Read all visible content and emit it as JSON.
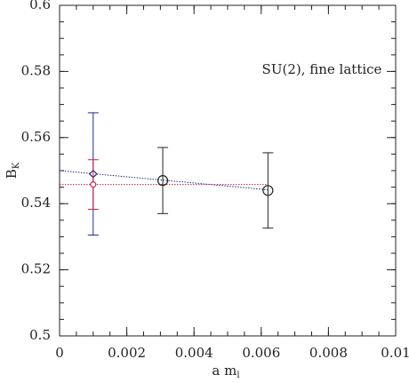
{
  "chart_data": {
    "type": "scatter",
    "annotation": "SU(2), fine lattice",
    "xlabel": "a m",
    "xlabel_sub": "l",
    "ylabel": "B",
    "ylabel_sub": "K",
    "xlim": [
      0,
      0.01
    ],
    "xticks": [
      0,
      0.002,
      0.004,
      0.006,
      0.008,
      0.01
    ],
    "ylim": [
      0.5,
      0.6
    ],
    "yticks": [
      0.5,
      0.52,
      0.54,
      0.56,
      0.58,
      0.6
    ],
    "xminor": 0.0005,
    "yminor": 0.005,
    "series": [
      {
        "color": "#222222",
        "marker": "circle",
        "x": [
          0.00307,
          0.0062
        ],
        "values": [
          0.547,
          0.544
        ],
        "errors": [
          0.01,
          0.0114
        ]
      },
      {
        "color": "#1f2a8a",
        "marker": "diamond",
        "x": [
          0.001
        ],
        "values": [
          0.549
        ],
        "errors": [
          0.0185
        ]
      },
      {
        "color": "#cc1f4a",
        "marker": "small-circle",
        "x": [
          0.001
        ],
        "values": [
          0.5458
        ],
        "errors": [
          0.0075
        ]
      }
    ],
    "fits": [
      {
        "color": "#1f2a8a",
        "x": [
          0,
          0.0062
        ],
        "values": [
          0.55,
          0.5442
        ]
      },
      {
        "color": "#cc1f4a",
        "x": [
          0,
          0.0062
        ],
        "values": [
          0.5458,
          0.5458
        ]
      }
    ]
  }
}
